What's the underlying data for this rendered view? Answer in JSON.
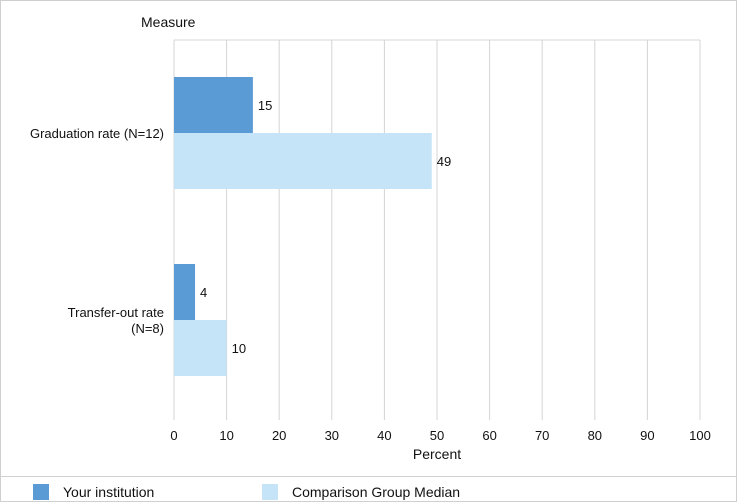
{
  "chart_data": {
    "type": "bar",
    "orientation": "horizontal",
    "title": "Measure",
    "categories": [
      "Graduation rate (N=12)",
      "Transfer-out rate (N=8)"
    ],
    "category_label_lines": [
      [
        "Graduation rate (N=12)"
      ],
      [
        "Transfer-out rate",
        "(N=8)"
      ]
    ],
    "series": [
      {
        "name": "Your institution",
        "values": [
          15,
          4
        ],
        "color": "#5b9bd5"
      },
      {
        "name": "Comparison Group Median",
        "values": [
          49,
          10
        ],
        "color": "#c6e4f7"
      }
    ],
    "xlabel": "Percent",
    "xlim": [
      0,
      100
    ],
    "xticks": [
      0,
      10,
      20,
      30,
      40,
      50,
      60,
      70,
      80,
      90,
      100
    ],
    "grid": true,
    "legend_position": "bottom"
  }
}
